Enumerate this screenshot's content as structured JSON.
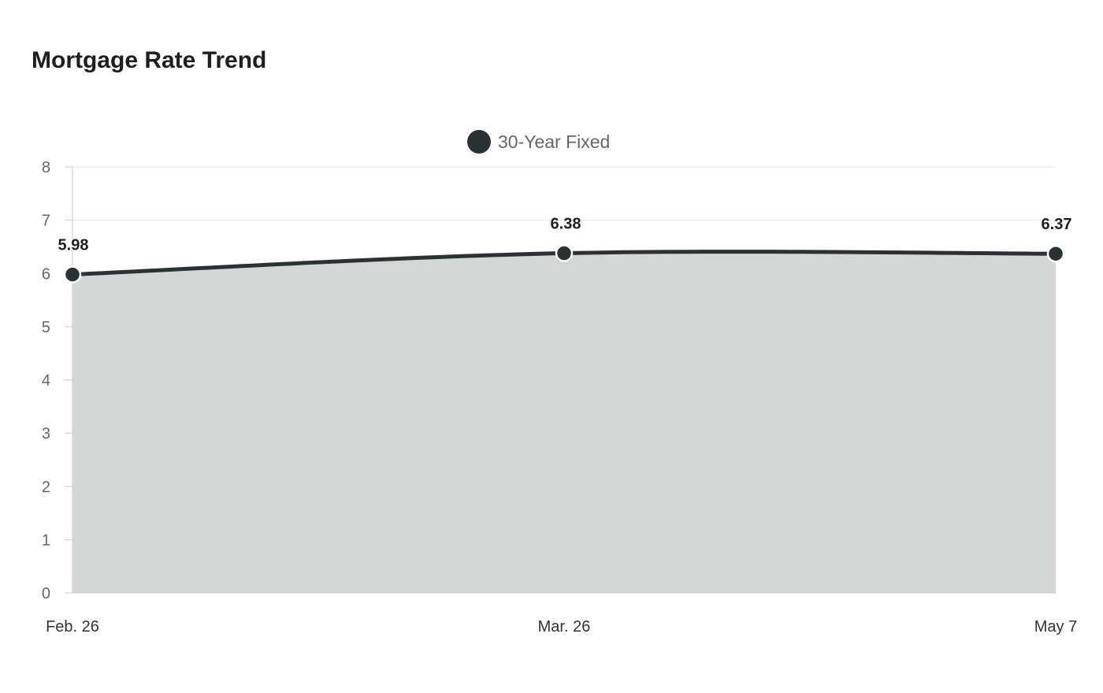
{
  "page": {
    "title": "Mortgage Rate Trend"
  },
  "chart_data": {
    "type": "area",
    "title": "Mortgage Rate Trend",
    "xlabel": "",
    "ylabel": "",
    "categories": [
      "Feb. 26",
      "Mar. 26",
      "May 7"
    ],
    "series": [
      {
        "name": "30-Year Fixed",
        "values": [
          5.98,
          6.38,
          6.37
        ],
        "color": "#2c3234",
        "fill": "#d5d7d7"
      }
    ],
    "ylim": [
      0,
      8
    ],
    "yticks": [
      "0",
      "1",
      "2",
      "3",
      "4",
      "5",
      "6",
      "7",
      "8"
    ],
    "data_labels": [
      "5.98",
      "6.38",
      "6.37"
    ],
    "grid": true,
    "legend": "top-center"
  }
}
